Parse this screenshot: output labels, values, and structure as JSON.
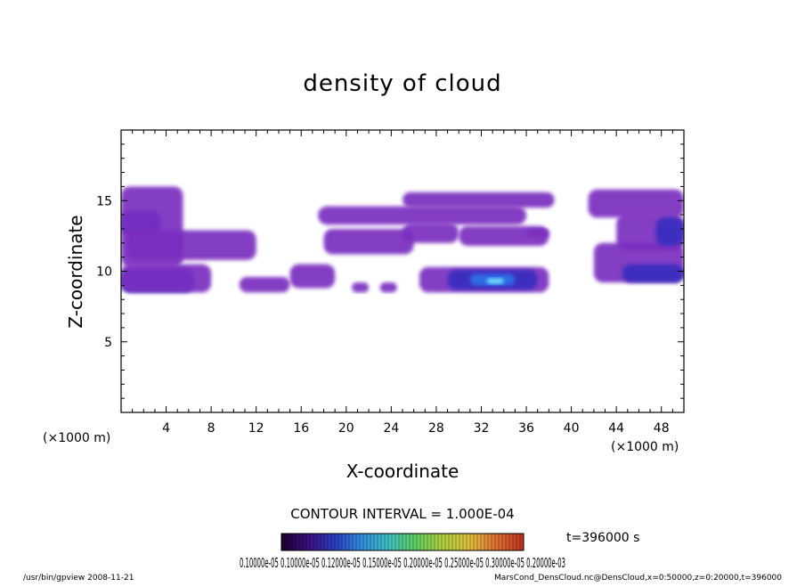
{
  "chart_data": {
    "type": "heatmap",
    "title": "density of cloud",
    "xlabel": "X-coordinate",
    "ylabel": "Z-coordinate",
    "x_unit": "(×1000 m)",
    "y_unit": "(×1000 m)",
    "xlim": [
      0,
      50
    ],
    "ylim": [
      0,
      20
    ],
    "x_ticks": [
      4,
      8,
      12,
      16,
      20,
      24,
      28,
      32,
      36,
      40,
      44,
      48
    ],
    "y_ticks": [
      5,
      10,
      15
    ],
    "contour_interval_label": "CONTOUR INTERVAL = 1.000E-04",
    "time_label": "t=396000 s",
    "colorbar_label": "0.10000e-05 0.10000e-05 0.12000e-05 0.15000e-05 0.20000e-05 0.25000e-05 0.30000e-05 0.20000e-03",
    "colorbar_colors": [
      "#1a0030",
      "#3a1080",
      "#2a40c0",
      "#3090e0",
      "#40c0c0",
      "#60d060",
      "#b0d040",
      "#e0c040",
      "#e07030",
      "#c03020"
    ],
    "regions": [
      {
        "x": [
          0,
          6.5
        ],
        "z": [
          8.5,
          10.2
        ],
        "level": 2
      },
      {
        "x": [
          0,
          3.5
        ],
        "z": [
          12.5,
          14.3
        ],
        "level": 2
      },
      {
        "x": [
          0,
          5.5
        ],
        "z": [
          10.3,
          16
        ],
        "level": 1
      },
      {
        "x": [
          0.5,
          12
        ],
        "z": [
          10.8,
          12.9
        ],
        "level": 1
      },
      {
        "x": [
          0,
          8
        ],
        "z": [
          8.5,
          10.5
        ],
        "level": 1
      },
      {
        "x": [
          10.5,
          15
        ],
        "z": [
          8.5,
          9.6
        ],
        "level": 1
      },
      {
        "x": [
          15,
          19
        ],
        "z": [
          8.8,
          10.5
        ],
        "level": 1
      },
      {
        "x": [
          17.5,
          36
        ],
        "z": [
          13.3,
          14.6
        ],
        "level": 1
      },
      {
        "x": [
          25,
          38.5
        ],
        "z": [
          14.5,
          15.6
        ],
        "level": 1
      },
      {
        "x": [
          18,
          26
        ],
        "z": [
          11.2,
          13
        ],
        "level": 1
      },
      {
        "x": [
          25,
          30
        ],
        "z": [
          12,
          13.4
        ],
        "level": 1
      },
      {
        "x": [
          30,
          38
        ],
        "z": [
          11.8,
          13.2
        ],
        "level": 1
      },
      {
        "x": [
          26.5,
          38
        ],
        "z": [
          8.5,
          10.3
        ],
        "level": 1
      },
      {
        "x": [
          29,
          37
        ],
        "z": [
          8.7,
          10.1
        ],
        "level": 2
      },
      {
        "x": [
          31,
          35
        ],
        "z": [
          9.0,
          9.8
        ],
        "level": 3
      },
      {
        "x": [
          32.5,
          34
        ],
        "z": [
          9.1,
          9.5
        ],
        "level": 4
      },
      {
        "x": [
          41.5,
          50
        ],
        "z": [
          13.8,
          15.8
        ],
        "level": 1
      },
      {
        "x": [
          44,
          50
        ],
        "z": [
          11.5,
          14
        ],
        "level": 1
      },
      {
        "x": [
          42,
          50
        ],
        "z": [
          9.2,
          12
        ],
        "level": 1
      },
      {
        "x": [
          44.5,
          50
        ],
        "z": [
          9.2,
          10.5
        ],
        "level": 2
      },
      {
        "x": [
          47.5,
          50
        ],
        "z": [
          11.8,
          13.8
        ],
        "level": 2
      },
      {
        "x": [
          36,
          38
        ],
        "z": [
          12.4,
          13
        ],
        "level": 1
      },
      {
        "x": [
          20.5,
          22
        ],
        "z": [
          8.5,
          9.2
        ],
        "level": 1
      },
      {
        "x": [
          23,
          24.5
        ],
        "z": [
          8.5,
          9.2
        ],
        "level": 1
      }
    ]
  },
  "footer": {
    "left": "/usr/bin/gpview   2008-11-21",
    "right": "MarsCond_DensCloud.nc@DensCloud,x=0:50000,z=0:20000,t=396000"
  }
}
